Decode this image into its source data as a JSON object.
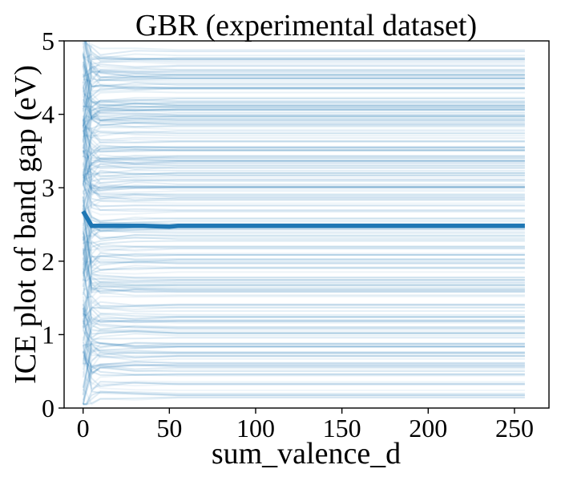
{
  "chart_data": {
    "type": "line",
    "title": "GBR (experimental dataset)",
    "xlabel": "sum_valence_d",
    "ylabel": "ICE plot of band gap (eV)",
    "xlim": [
      -11,
      270
    ],
    "ylim": [
      0,
      5
    ],
    "xticks": [
      "0",
      "50",
      "100",
      "150",
      "200",
      "250"
    ],
    "yticks": [
      "0",
      "1",
      "2",
      "3",
      "4",
      "5"
    ],
    "grid": false,
    "legend": "none",
    "colors": {
      "ice_lines": "#1f77b4",
      "pd_line": "#1f77b4"
    },
    "x_range": [
      0,
      256
    ],
    "pd_series": {
      "x": [
        0,
        5,
        10,
        20,
        35,
        50,
        55,
        80,
        100,
        150,
        200,
        256
      ],
      "y": [
        2.68,
        2.48,
        2.48,
        2.48,
        2.48,
        2.47,
        2.48,
        2.48,
        2.48,
        2.48,
        2.48,
        2.48
      ]
    },
    "ice_description": {
      "count_approx": 260,
      "x_start": 0,
      "x_end": 256,
      "y_range_at_high_x": [
        0.12,
        4.88
      ],
      "note": "Many near-flat individual-conditional-expectation curves; most variation occurs for x < 10"
    }
  }
}
